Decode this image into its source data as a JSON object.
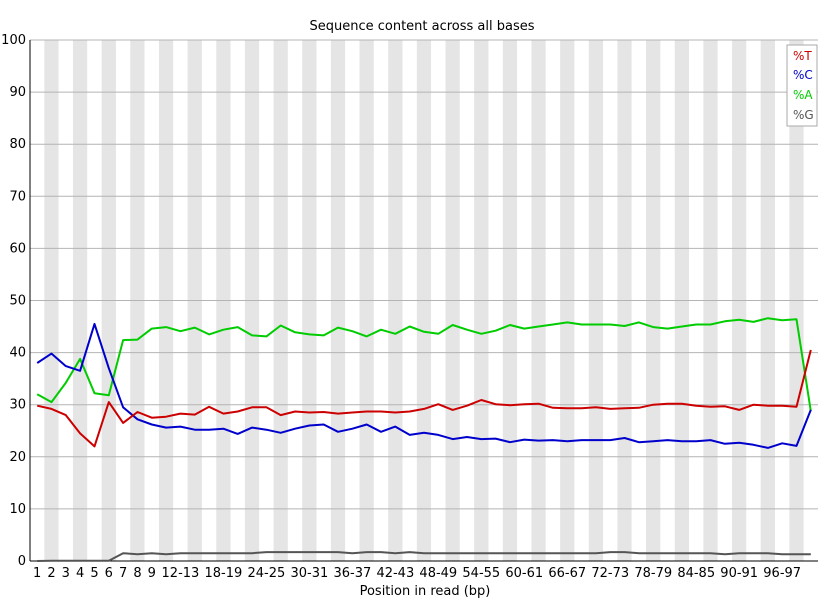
{
  "chart_data": {
    "type": "line",
    "title": "Sequence content across all bases",
    "xlabel": "Position in read (bp)",
    "ylabel": "",
    "ylim": [
      0,
      100
    ],
    "yticks": [
      0,
      10,
      20,
      30,
      40,
      50,
      60,
      70,
      80,
      90,
      100
    ],
    "grid": true,
    "legend_position": "top-right",
    "x": [
      "1",
      "2",
      "3",
      "4",
      "5",
      "6",
      "7",
      "8",
      "9",
      "10-11",
      "12-13",
      "14-15",
      "16-17",
      "18-19",
      "20-21",
      "22-23",
      "24-25",
      "26-27",
      "28-29",
      "30-31",
      "32-33",
      "34-35",
      "36-37",
      "38-39",
      "40-41",
      "42-43",
      "44-45",
      "46-47",
      "48-49",
      "50-51",
      "52-53",
      "54-55",
      "56-57",
      "58-59",
      "60-61",
      "62-63",
      "64-65",
      "66-67",
      "68-69",
      "70-71",
      "72-73",
      "74-75",
      "76-77",
      "78-79",
      "80-81",
      "82-83",
      "84-85",
      "86-87",
      "88-89",
      "90-91",
      "92-93",
      "94-95",
      "96-97",
      "98-99",
      "100"
    ],
    "xtick_labels": [
      "1",
      "2",
      "3",
      "4",
      "5",
      "6",
      "7",
      "8",
      "9",
      "12-13",
      "18-19",
      "24-25",
      "30-31",
      "36-37",
      "42-43",
      "48-49",
      "54-55",
      "60-61",
      "66-67",
      "72-73",
      "78-79",
      "84-85",
      "90-91",
      "96-97"
    ],
    "series": [
      {
        "name": "%T",
        "color": "#cc0000",
        "values": [
          29.8,
          29.2,
          28.0,
          24.5,
          22.0,
          30.5,
          26.5,
          28.6,
          27.5,
          27.7,
          28.3,
          28.1,
          29.6,
          28.3,
          28.7,
          29.5,
          29.5,
          28.0,
          28.7,
          28.5,
          28.6,
          28.3,
          28.5,
          28.7,
          28.7,
          28.5,
          28.7,
          29.2,
          30.1,
          29.0,
          29.8,
          30.9,
          30.1,
          29.9,
          30.1,
          30.2,
          29.4,
          29.3,
          29.3,
          29.5,
          29.2,
          29.3,
          29.4,
          30.0,
          30.2,
          30.2,
          29.8,
          29.6,
          29.7,
          29.0,
          30.0,
          29.8,
          29.8,
          29.6,
          40.5
        ]
      },
      {
        "name": "%C",
        "color": "#0000cc",
        "values": [
          38.0,
          39.8,
          37.4,
          36.5,
          45.5,
          37.0,
          29.5,
          27.2,
          26.2,
          25.6,
          25.8,
          25.2,
          25.2,
          25.4,
          24.4,
          25.6,
          25.2,
          24.6,
          25.4,
          26.0,
          26.2,
          24.8,
          25.4,
          26.2,
          24.8,
          25.8,
          24.2,
          24.6,
          24.2,
          23.4,
          23.8,
          23.4,
          23.5,
          22.8,
          23.3,
          23.1,
          23.2,
          23.0,
          23.2,
          23.2,
          23.2,
          23.6,
          22.8,
          23.0,
          23.2,
          23.0,
          23.0,
          23.2,
          22.5,
          22.7,
          22.3,
          21.7,
          22.6,
          22.1,
          29.0
        ]
      },
      {
        "name": "%A",
        "color": "#00cc00",
        "values": [
          32.0,
          30.5,
          34.2,
          38.8,
          32.2,
          31.8,
          42.4,
          42.5,
          44.6,
          44.9,
          44.1,
          44.8,
          43.5,
          44.4,
          44.9,
          43.3,
          43.1,
          45.2,
          43.9,
          43.5,
          43.3,
          44.8,
          44.1,
          43.1,
          44.4,
          43.6,
          45.0,
          44.0,
          43.6,
          45.3,
          44.4,
          43.6,
          44.2,
          45.3,
          44.6,
          45.0,
          45.4,
          45.8,
          45.4,
          45.4,
          45.4,
          45.1,
          45.8,
          44.9,
          44.6,
          45.0,
          45.4,
          45.4,
          46.0,
          46.3,
          45.9,
          46.6,
          46.2,
          46.4,
          28.8
        ]
      },
      {
        "name": "%G",
        "color": "#555555",
        "values": [
          0.0,
          0.05,
          0.05,
          0.05,
          0.05,
          0.05,
          1.5,
          1.3,
          1.5,
          1.3,
          1.5,
          1.5,
          1.5,
          1.5,
          1.5,
          1.5,
          1.7,
          1.7,
          1.7,
          1.7,
          1.7,
          1.7,
          1.5,
          1.7,
          1.7,
          1.5,
          1.7,
          1.5,
          1.5,
          1.5,
          1.5,
          1.5,
          1.5,
          1.5,
          1.5,
          1.5,
          1.5,
          1.5,
          1.5,
          1.5,
          1.7,
          1.7,
          1.5,
          1.5,
          1.5,
          1.5,
          1.5,
          1.5,
          1.3,
          1.5,
          1.5,
          1.5,
          1.3,
          1.3,
          1.3
        ]
      }
    ]
  }
}
